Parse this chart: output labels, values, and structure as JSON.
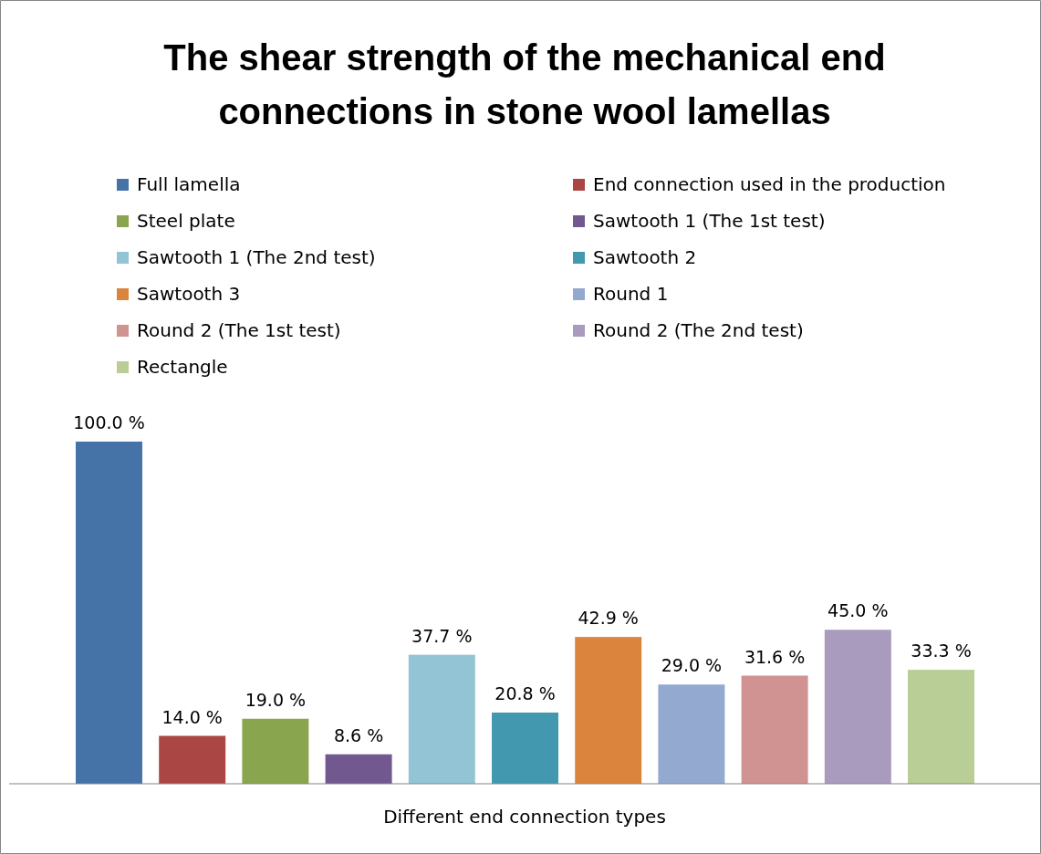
{
  "chart_data": {
    "type": "bar",
    "title": "The shear strength of the mechanical end connections in stone wool lamellas",
    "xlabel": "Different end connection types",
    "categories": [
      null,
      null,
      null,
      null,
      null,
      null,
      null,
      null,
      null,
      null,
      null
    ],
    "stacked": true,
    "legend": "top",
    "series": [
      {
        "name": "Full lamella",
        "color": "#4572a7",
        "values": [
          100.0,
          null,
          null,
          null,
          null,
          null,
          null,
          null,
          null,
          null,
          null
        ],
        "value_labels": [
          "100.0 %",
          null,
          null,
          null,
          null,
          null,
          null,
          null,
          null,
          null,
          null
        ]
      },
      {
        "name": "End connection used in the production",
        "color": "#aa4643",
        "values": [
          null,
          14.0,
          null,
          null,
          null,
          null,
          null,
          null,
          null,
          null,
          null
        ],
        "value_labels": [
          null,
          "14.0 %",
          null,
          null,
          null,
          null,
          null,
          null,
          null,
          null,
          null
        ]
      },
      {
        "name": "Steel plate",
        "color": "#89a54e",
        "values": [
          null,
          null,
          19.0,
          null,
          null,
          null,
          null,
          null,
          null,
          null,
          null
        ],
        "value_labels": [
          null,
          null,
          "19.0 %",
          null,
          null,
          null,
          null,
          null,
          null,
          null,
          null
        ]
      },
      {
        "name": "Sawtooth 1 (The 1st test)",
        "color": "#71588f",
        "values": [
          null,
          null,
          null,
          8.6,
          null,
          null,
          null,
          null,
          null,
          null,
          null
        ],
        "value_labels": [
          null,
          null,
          null,
          "8.6 %",
          null,
          null,
          null,
          null,
          null,
          null,
          null
        ]
      },
      {
        "name": "Sawtooth 1 (The 2nd test)",
        "color": "#93c4d5",
        "values": [
          null,
          null,
          null,
          null,
          37.7,
          null,
          null,
          null,
          null,
          null,
          null
        ],
        "value_labels": [
          null,
          null,
          null,
          null,
          "37.7 %",
          null,
          null,
          null,
          null,
          null,
          null
        ]
      },
      {
        "name": "Sawtooth 2",
        "color": "#4198af",
        "values": [
          null,
          null,
          null,
          null,
          null,
          20.8,
          null,
          null,
          null,
          null,
          null
        ],
        "value_labels": [
          null,
          null,
          null,
          null,
          null,
          "20.8 %",
          null,
          null,
          null,
          null,
          null
        ]
      },
      {
        "name": "Sawtooth 3",
        "color": "#db843d",
        "values": [
          null,
          null,
          null,
          null,
          null,
          null,
          42.9,
          null,
          null,
          null,
          null
        ],
        "value_labels": [
          null,
          null,
          null,
          null,
          null,
          null,
          "42.9 %",
          null,
          null,
          null,
          null
        ]
      },
      {
        "name": "Round 1",
        "color": "#93a9cf",
        "values": [
          null,
          null,
          null,
          null,
          null,
          null,
          null,
          29.0,
          null,
          null,
          null
        ],
        "value_labels": [
          null,
          null,
          null,
          null,
          null,
          null,
          null,
          "29.0 %",
          null,
          null,
          null
        ]
      },
      {
        "name": "Round 2 (The 1st test)",
        "color": "#d19392",
        "values": [
          null,
          null,
          null,
          null,
          null,
          null,
          null,
          null,
          31.6,
          null,
          null
        ],
        "value_labels": [
          null,
          null,
          null,
          null,
          null,
          null,
          null,
          null,
          "31.6 %",
          null,
          null
        ]
      },
      {
        "name": "Round 2 (The 2nd test)",
        "color": "#a99bbd",
        "values": [
          null,
          null,
          null,
          null,
          null,
          null,
          null,
          null,
          null,
          45.0,
          null
        ],
        "value_labels": [
          null,
          null,
          null,
          null,
          null,
          null,
          null,
          null,
          null,
          "45.0 %",
          null
        ]
      },
      {
        "name": "Rectangle",
        "color": "#b9cd96",
        "values": [
          null,
          null,
          null,
          null,
          null,
          null,
          null,
          null,
          null,
          null,
          33.3
        ],
        "value_labels": [
          null,
          null,
          null,
          null,
          null,
          null,
          null,
          null,
          null,
          null,
          "33.3 %"
        ]
      }
    ]
  }
}
